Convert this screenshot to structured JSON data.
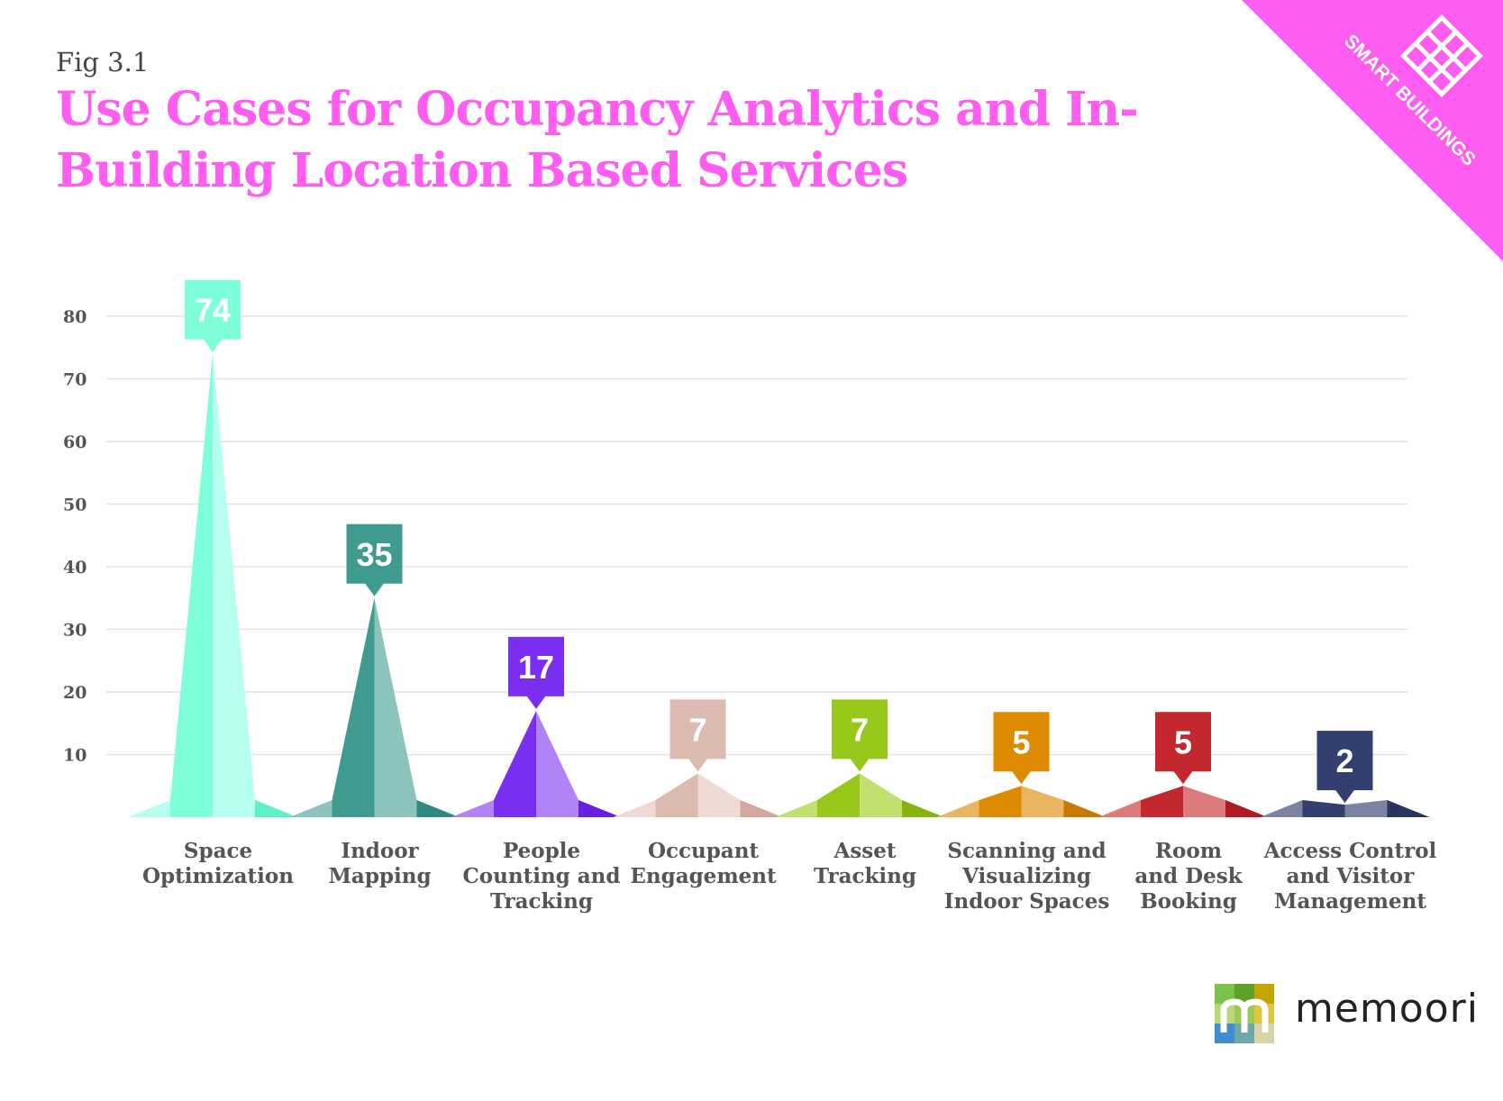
{
  "figure_label": "Fig 3.1",
  "title": "Use Cases for Occupancy Analytics and In-Building Location Based Services",
  "badge": {
    "text": "SMART BUILDINGS",
    "color": "#ff5cf1",
    "icon": "building-grid-icon"
  },
  "logo": {
    "text": "memoori",
    "icon": "memoori-m-icon"
  },
  "chart_data": {
    "type": "bar",
    "title": "Use Cases for Occupancy Analytics and In-Building Location Based Services",
    "xlabel": "",
    "ylabel": "",
    "ylim": [
      0,
      80
    ],
    "yticks": [
      10,
      20,
      30,
      40,
      50,
      60,
      70,
      80
    ],
    "grid": true,
    "categories": [
      [
        "Space",
        "Optimization"
      ],
      [
        "Indoor",
        "Mapping"
      ],
      [
        "People",
        "Counting and",
        "Tracking"
      ],
      [
        "Occupant",
        "Engagement"
      ],
      [
        "Asset",
        "Tracking"
      ],
      [
        "Scanning and",
        "Visualizing",
        "Indoor Spaces"
      ],
      [
        "Room",
        "and Desk",
        "Booking"
      ],
      [
        "Access Control",
        "and Visitor",
        "Management"
      ]
    ],
    "values": [
      74,
      35,
      17,
      7,
      7,
      5,
      5,
      2
    ],
    "colors": [
      {
        "main": "#7fffd9",
        "light": "#b6fff0",
        "dark": "#5ff0c8"
      },
      {
        "main": "#3f9a90",
        "light": "#8cc3bd",
        "dark": "#2e8a80"
      },
      {
        "main": "#7a2ff0",
        "light": "#b083f6",
        "dark": "#6a1fe0"
      },
      {
        "main": "#ddbab0",
        "light": "#efd9d3",
        "dark": "#d2a89c"
      },
      {
        "main": "#98c81c",
        "light": "#c2e06e",
        "dark": "#86b30e"
      },
      {
        "main": "#dd8a00",
        "light": "#eab560",
        "dark": "#c87a00"
      },
      {
        "main": "#c4282f",
        "light": "#dc7a7d",
        "dark": "#b01a22"
      },
      {
        "main": "#333f6e",
        "light": "#7b83a3",
        "dark": "#28335e"
      }
    ]
  }
}
